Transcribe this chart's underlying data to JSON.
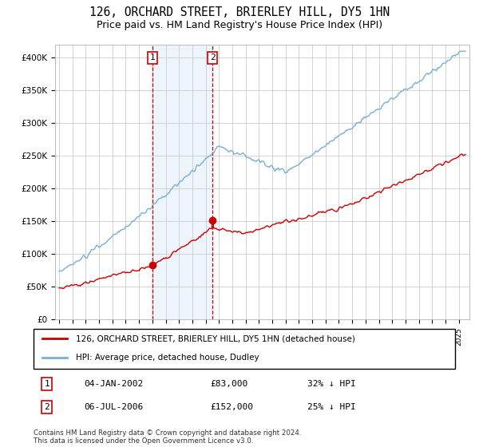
{
  "title": "126, ORCHARD STREET, BRIERLEY HILL, DY5 1HN",
  "subtitle": "Price paid vs. HM Land Registry's House Price Index (HPI)",
  "title_fontsize": 10.5,
  "subtitle_fontsize": 9,
  "ylabel_ticks": [
    "£0",
    "£50K",
    "£100K",
    "£150K",
    "£200K",
    "£250K",
    "£300K",
    "£350K",
    "£400K"
  ],
  "ylim": [
    0,
    420000
  ],
  "yticks": [
    0,
    50000,
    100000,
    150000,
    200000,
    250000,
    300000,
    350000,
    400000
  ],
  "xlim_start": 1994.7,
  "xlim_end": 2025.8,
  "purchase1_x": 2002.02,
  "purchase1_y": 83000,
  "purchase2_x": 2006.51,
  "purchase2_y": 152000,
  "purchase1_label": "1",
  "purchase2_label": "2",
  "purchase1_date": "04-JAN-2002",
  "purchase1_price": "£83,000",
  "purchase1_hpi": "32% ↓ HPI",
  "purchase2_date": "06-JUL-2006",
  "purchase2_price": "£152,000",
  "purchase2_hpi": "25% ↓ HPI",
  "line1_color": "#cc0000",
  "line2_color": "#7aafd4",
  "shade_color": "#cce0f5",
  "marker_box_color": "#cc0000",
  "grid_color": "#cccccc",
  "bg_color": "#ffffff",
  "legend_label1": "126, ORCHARD STREET, BRIERLEY HILL, DY5 1HN (detached house)",
  "legend_label2": "HPI: Average price, detached house, Dudley",
  "footer": "Contains HM Land Registry data © Crown copyright and database right 2024.\nThis data is licensed under the Open Government Licence v3.0."
}
